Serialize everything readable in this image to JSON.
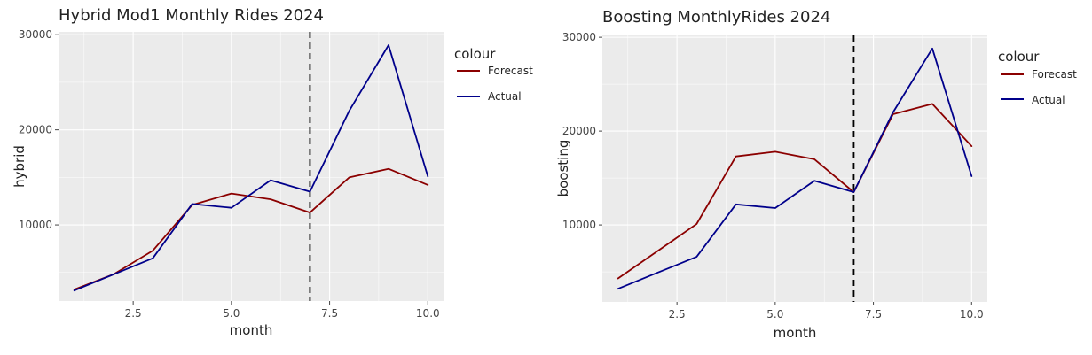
{
  "colors": {
    "panel": "#ebebeb",
    "grid": "#ffffff",
    "forecast": "#8b0000",
    "actual": "#00008b",
    "vline": "#000000"
  },
  "chart_data": [
    {
      "type": "line",
      "title": "Hybrid Mod1 Monthly Rides 2024",
      "xlabel": "month",
      "ylabel": "hybrid",
      "xlim": [
        0.6,
        10.4
      ],
      "ylim": [
        2000,
        30300
      ],
      "xticks": [
        2.5,
        5.0,
        7.5,
        10.0
      ],
      "xtick_labels": [
        "2.5",
        "5.0",
        "7.5",
        "10.0"
      ],
      "yticks": [
        10000,
        20000,
        30000
      ],
      "ytick_labels": [
        "10000",
        "20000",
        "30000"
      ],
      "vline_x": 7,
      "grid": true,
      "legend": {
        "title": "colour",
        "position": "right",
        "entries": [
          {
            "label": "Forecast",
            "color": "#8b0000"
          },
          {
            "label": "Actual",
            "color": "#00008b"
          }
        ]
      },
      "x": [
        1,
        2,
        3,
        4,
        5,
        6,
        7,
        8,
        9,
        10
      ],
      "series": [
        {
          "name": "Forecast",
          "color": "#8b0000",
          "values": [
            3200,
            4800,
            7300,
            12100,
            13300,
            12700,
            11300,
            15000,
            15900,
            14200
          ]
        },
        {
          "name": "Actual",
          "color": "#00008b",
          "values": [
            3100,
            4800,
            6500,
            12200,
            11800,
            14700,
            13500,
            22000,
            28900,
            15100
          ]
        }
      ]
    },
    {
      "type": "line",
      "title": "Boosting MonthlyRides 2024",
      "xlabel": "month",
      "ylabel": "boosting",
      "xlim": [
        0.6,
        10.4
      ],
      "ylim": [
        1800,
        30200
      ],
      "xticks": [
        2.5,
        5.0,
        7.5,
        10.0
      ],
      "xtick_labels": [
        "2.5",
        "5.0",
        "7.5",
        "10.0"
      ],
      "yticks": [
        10000,
        20000,
        30000
      ],
      "ytick_labels": [
        "10000",
        "20000",
        "30000"
      ],
      "vline_x": 7,
      "grid": true,
      "legend": {
        "title": "colour",
        "position": "right",
        "entries": [
          {
            "label": "Forecast",
            "color": "#8b0000"
          },
          {
            "label": "Actual",
            "color": "#00008b"
          }
        ]
      },
      "x": [
        1,
        2,
        3,
        4,
        5,
        6,
        7,
        8,
        9,
        10
      ],
      "series": [
        {
          "name": "Forecast",
          "color": "#8b0000",
          "values": [
            4300,
            7200,
            10100,
            17300,
            17800,
            17000,
            13500,
            21800,
            22900,
            18400
          ]
        },
        {
          "name": "Actual",
          "color": "#00008b",
          "values": [
            3200,
            4900,
            6600,
            12200,
            11800,
            14700,
            13500,
            22000,
            28800,
            15200
          ]
        }
      ]
    }
  ]
}
